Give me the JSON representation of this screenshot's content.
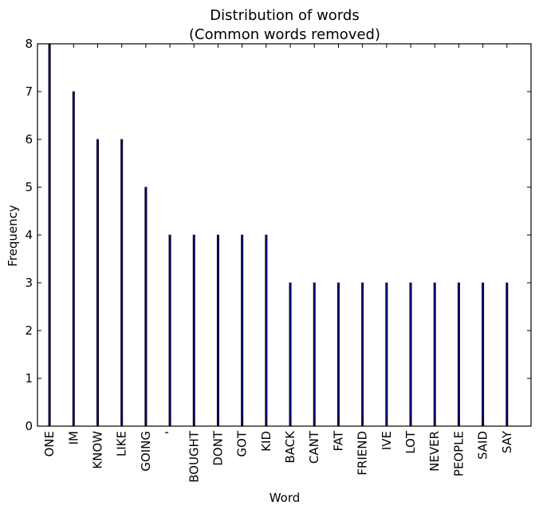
{
  "chart_data": {
    "type": "bar",
    "title": "Distribution of words",
    "subtitle": "(Common words removed)",
    "xlabel": "Word",
    "ylabel": "Frequency",
    "ylim": [
      0,
      8
    ],
    "yticks": [
      0,
      1,
      2,
      3,
      4,
      5,
      6,
      7,
      8
    ],
    "grid": false,
    "categories": [
      "ONE",
      "IM",
      "KNOW",
      "LIKE",
      "GOING",
      "'",
      "BOUGHT",
      "DONT",
      "GOT",
      "KID",
      "BACK",
      "CANT",
      "FAT",
      "FRIEND",
      "IVE",
      "LOT",
      "NEVER",
      "PEOPLE",
      "SAID",
      "SAY"
    ],
    "values": [
      8,
      7,
      6,
      6,
      5,
      4,
      4,
      4,
      4,
      4,
      3,
      3,
      3,
      3,
      3,
      3,
      3,
      3,
      3,
      3
    ],
    "bar_color": "#000080"
  }
}
